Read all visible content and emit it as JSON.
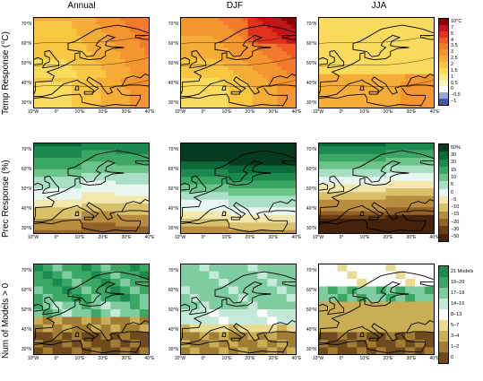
{
  "columns": [
    "Annual",
    "DJF",
    "JJA"
  ],
  "rows": [
    {
      "label": "Temp Response (°C)",
      "colorbar": {
        "labels": [
          "10°C",
          "7",
          "5",
          "4",
          "3.5",
          "3",
          "2.5",
          "2",
          "1.5",
          "1",
          "0.5",
          "0",
          "−0.5",
          "−1"
        ],
        "colors": [
          "#8b0000",
          "#c2151b",
          "#e0321f",
          "#ee5a26",
          "#f27a2c",
          "#f4952f",
          "#f6ad37",
          "#f9c642",
          "#fadb5d",
          "#fbe987",
          "#fdf5bd",
          "#ffffff",
          "#9aa6d4",
          "#4756a8"
        ]
      }
    },
    {
      "label": "Prec Response (%)",
      "colorbar": {
        "labels": [
          "50%",
          "30",
          "20",
          "15",
          "10",
          "5",
          "0",
          "−5",
          "−10",
          "−15",
          "−20",
          "−30",
          "−50"
        ],
        "colors": [
          "#073b20",
          "#0c6a3a",
          "#1c8a4f",
          "#3aa864",
          "#6cc48a",
          "#a9dfc4",
          "#e9f7f1",
          "#f3e8ad",
          "#d9c06b",
          "#b88d3e",
          "#936227",
          "#6c3f15",
          "#45230a"
        ]
      }
    },
    {
      "label": "Num of Models > 0",
      "colorbar": {
        "labels": [
          "21 Models",
          "19–20",
          "17–18",
          "14–16",
          "8–13",
          "5–7",
          "3–4",
          "1–2",
          "0"
        ],
        "colors": [
          "#1b8a4e",
          "#3aa864",
          "#7fcca0",
          "#c4ead7",
          "#ffffff",
          "#eadb92",
          "#c9ae55",
          "#a07d32",
          "#6e4a1c"
        ]
      }
    }
  ],
  "lat_ticks": [
    "70°N",
    "60°N",
    "50°N",
    "40°N",
    "30°N"
  ],
  "lon_ticks": [
    "10°W",
    "0°",
    "10°E",
    "20°E",
    "30°E",
    "40°E"
  ],
  "contour_labels": {
    "t_annual": [
      "2.5",
      "3",
      "2"
    ],
    "t_djf": [
      "3.5",
      "4",
      "2"
    ],
    "t_jja": [
      "3",
      "2.5",
      "1.5"
    ]
  }
}
